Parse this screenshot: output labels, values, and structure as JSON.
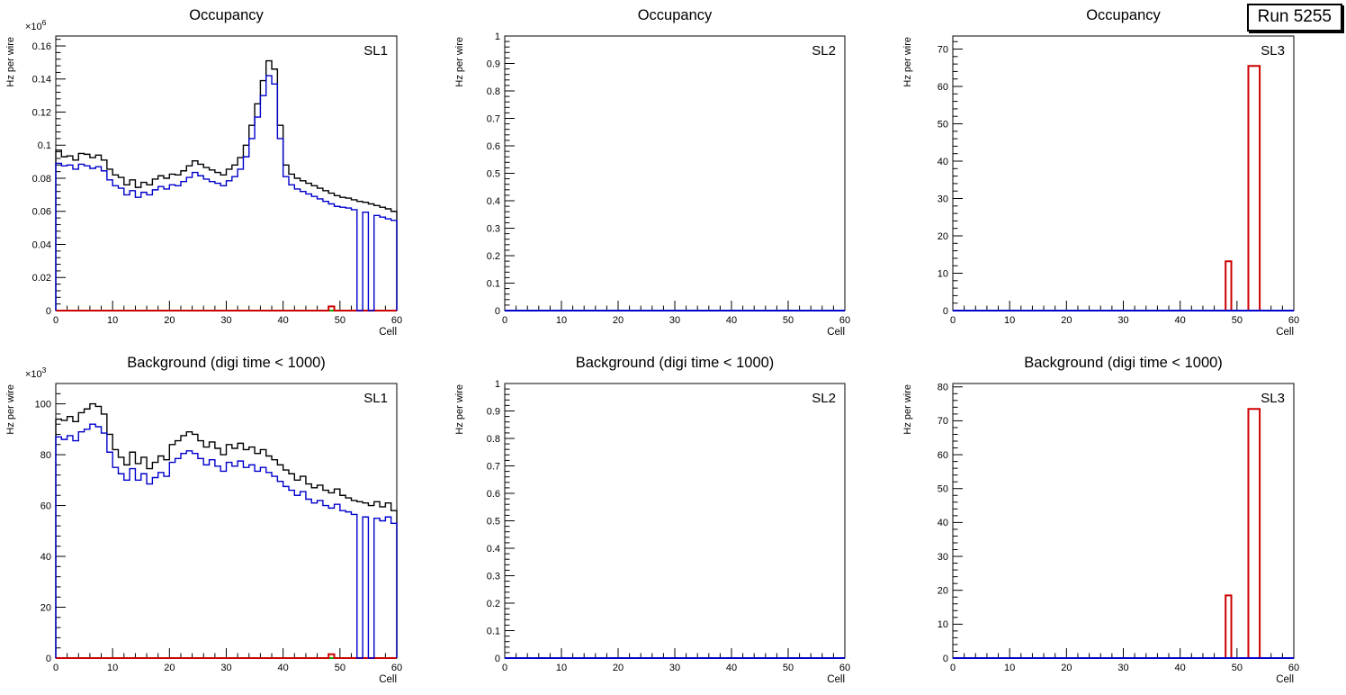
{
  "run_label": "Run 5255",
  "chart_data": [
    {
      "id": "occupancy-sl1",
      "type": "bar",
      "subtype": "step-histogram",
      "title": "Occupancy",
      "pad_label": "SL1",
      "xlabel": "Cell",
      "ylabel": "Hz per wire",
      "y_multiplier": {
        "base": "×10",
        "exp": "6"
      },
      "xlim": [
        0,
        60
      ],
      "ylim": [
        0,
        0.166
      ],
      "xticks": [
        0,
        10,
        20,
        30,
        40,
        50,
        60
      ],
      "x_minor": 2,
      "yticks": [
        0,
        0.02,
        0.04,
        0.06,
        0.08,
        0.1,
        0.12,
        0.14,
        0.16
      ],
      "ytick_labels": [
        "0",
        "0.02",
        "0.04",
        "0.06",
        "0.08",
        "0.1",
        "0.12",
        "0.14",
        "0.16"
      ],
      "y_minor": 0.004,
      "nbins": 60,
      "grid": false,
      "legend": "none",
      "series": [
        {
          "name": "zero-baseline-green",
          "color": "#00b400",
          "lw": 2,
          "default": 0
        },
        {
          "name": "noisy-cells-red",
          "color": "#cc0000",
          "lw": 2,
          "default": 0,
          "spikes": {
            "48": 0.0025
          }
        },
        {
          "name": "total-black",
          "color": "#000000",
          "lw": 1.4,
          "values": [
            0.097,
            0.093,
            0.0935,
            0.091,
            0.095,
            0.0945,
            0.0925,
            0.094,
            0.091,
            0.0855,
            0.082,
            0.0805,
            0.076,
            0.079,
            0.0745,
            0.0775,
            0.076,
            0.0795,
            0.0815,
            0.08,
            0.0825,
            0.082,
            0.0845,
            0.0875,
            0.0905,
            0.0885,
            0.0865,
            0.085,
            0.0835,
            0.082,
            0.0855,
            0.088,
            0.0925,
            0.1,
            0.112,
            0.125,
            0.139,
            0.151,
            0.146,
            0.112,
            0.088,
            0.0825,
            0.08,
            0.0785,
            0.077,
            0.0755,
            0.074,
            0.0725,
            0.071,
            0.0695,
            0.0685,
            0.068,
            0.067,
            0.066,
            0.0655,
            0.0645,
            0.0635,
            0.0625,
            0.0615,
            0.06
          ]
        },
        {
          "name": "selected-blue",
          "color": "#0000cc",
          "lw": 1.4,
          "values": [
            0.089,
            0.0875,
            0.088,
            0.0855,
            0.0885,
            0.0875,
            0.086,
            0.087,
            0.0845,
            0.079,
            0.0755,
            0.074,
            0.07,
            0.0725,
            0.0685,
            0.0715,
            0.07,
            0.073,
            0.075,
            0.0735,
            0.076,
            0.0755,
            0.078,
            0.0805,
            0.0835,
            0.0815,
            0.0795,
            0.078,
            0.077,
            0.0755,
            0.0785,
            0.081,
            0.0855,
            0.093,
            0.104,
            0.117,
            0.13,
            0.142,
            0.137,
            0.104,
            0.081,
            0.076,
            0.0735,
            0.072,
            0.0705,
            0.069,
            0.0675,
            0.066,
            0.0645,
            0.063,
            0.0625,
            0.062,
            0.061,
            0,
            0.0595,
            0,
            0.0575,
            0.0565,
            0.0555,
            0.0545
          ]
        }
      ]
    },
    {
      "id": "occupancy-sl2",
      "type": "bar",
      "subtype": "step-histogram",
      "title": "Occupancy",
      "pad_label": "SL2",
      "xlabel": "Cell",
      "ylabel": "Hz per wire",
      "y_multiplier": null,
      "xlim": [
        0,
        60
      ],
      "ylim": [
        0,
        1
      ],
      "xticks": [
        0,
        10,
        20,
        30,
        40,
        50,
        60
      ],
      "x_minor": 2,
      "yticks": [
        0,
        0.1,
        0.2,
        0.3,
        0.4,
        0.5,
        0.6,
        0.7,
        0.8,
        0.9,
        1
      ],
      "ytick_labels": [
        "0",
        "0.1",
        "0.2",
        "0.3",
        "0.4",
        "0.5",
        "0.6",
        "0.7",
        "0.8",
        "0.9",
        "1"
      ],
      "y_minor": 0.02,
      "nbins": 60,
      "grid": false,
      "legend": "none",
      "series": [
        {
          "name": "empty-baseline-blue",
          "color": "#0000cc",
          "lw": 2,
          "default": 0
        }
      ]
    },
    {
      "id": "occupancy-sl3",
      "type": "bar",
      "subtype": "step-histogram",
      "title": "Occupancy",
      "pad_label": "SL3",
      "xlabel": "Cell",
      "ylabel": "Hz per wire",
      "y_multiplier": null,
      "xlim": [
        0,
        60
      ],
      "ylim": [
        0,
        73.5
      ],
      "xticks": [
        0,
        10,
        20,
        30,
        40,
        50,
        60
      ],
      "x_minor": 2,
      "yticks": [
        0,
        10,
        20,
        30,
        40,
        50,
        60,
        70
      ],
      "ytick_labels": [
        "0",
        "10",
        "20",
        "30",
        "40",
        "50",
        "60",
        "70"
      ],
      "y_minor": 2,
      "nbins": 60,
      "grid": false,
      "legend": "none",
      "series": [
        {
          "name": "noisy-cells-red",
          "color": "#cc0000",
          "lw": 2,
          "default": 0,
          "spikes": {
            "48": 13.2,
            "52": 65.5,
            "53": 65.5
          }
        },
        {
          "name": "empty-baseline-blue",
          "color": "#0000cc",
          "lw": 2,
          "default": 0
        }
      ]
    },
    {
      "id": "background-sl1",
      "type": "bar",
      "subtype": "step-histogram",
      "title": "Background (digi time < 1000)",
      "pad_label": "SL1",
      "xlabel": "Cell",
      "ylabel": "Hz per wire",
      "y_multiplier": {
        "base": "×10",
        "exp": "3"
      },
      "xlim": [
        0,
        60
      ],
      "ylim": [
        0,
        108
      ],
      "xticks": [
        0,
        10,
        20,
        30,
        40,
        50,
        60
      ],
      "x_minor": 2,
      "yticks": [
        0,
        20,
        40,
        60,
        80,
        100
      ],
      "ytick_labels": [
        "0",
        "20",
        "40",
        "60",
        "80",
        "100"
      ],
      "y_minor": 4,
      "nbins": 60,
      "grid": false,
      "legend": "none",
      "series": [
        {
          "name": "zero-baseline-green",
          "color": "#00b400",
          "lw": 2,
          "default": 0
        },
        {
          "name": "noisy-cells-red",
          "color": "#cc0000",
          "lw": 2,
          "default": 0,
          "spikes": {
            "48": 1.5
          }
        },
        {
          "name": "total-black",
          "color": "#000000",
          "lw": 1.4,
          "values": [
            94,
            93.5,
            95,
            93,
            96.5,
            98,
            100,
            99,
            96,
            88,
            82,
            79,
            76,
            81,
            76.5,
            79,
            74.5,
            77,
            79.5,
            78,
            84,
            85.5,
            87.5,
            89,
            88,
            85.5,
            83,
            85,
            82.5,
            80,
            84,
            82.5,
            84.5,
            82,
            83,
            80.5,
            82,
            79.5,
            78,
            76,
            74,
            72.5,
            70,
            71.5,
            68.5,
            67,
            68,
            66,
            65,
            66.5,
            64,
            63,
            62,
            61.5,
            61,
            60,
            61.5,
            59.5,
            61,
            58
          ]
        },
        {
          "name": "selected-blue",
          "color": "#0000cc",
          "lw": 1.4,
          "values": [
            87,
            86,
            87.5,
            85.5,
            89,
            90,
            92,
            91,
            88.5,
            81,
            75,
            72.5,
            70,
            74.5,
            70,
            72.5,
            68.5,
            71,
            73,
            71.5,
            77,
            78.5,
            80.5,
            81.5,
            80.5,
            78.5,
            76,
            78,
            75.5,
            73.5,
            77,
            75.5,
            77.5,
            75,
            76,
            73.5,
            75,
            73,
            71.5,
            69.5,
            67.5,
            66,
            64,
            65.5,
            62.5,
            61,
            62,
            60,
            59,
            60.5,
            58,
            57.5,
            56.5,
            0,
            55.5,
            0,
            55,
            54,
            55.5,
            53
          ]
        }
      ]
    },
    {
      "id": "background-sl2",
      "type": "bar",
      "subtype": "step-histogram",
      "title": "Background (digi time < 1000)",
      "pad_label": "SL2",
      "xlabel": "Cell",
      "ylabel": "Hz per wire",
      "y_multiplier": null,
      "xlim": [
        0,
        60
      ],
      "ylim": [
        0,
        1
      ],
      "xticks": [
        0,
        10,
        20,
        30,
        40,
        50,
        60
      ],
      "x_minor": 2,
      "yticks": [
        0,
        0.1,
        0.2,
        0.3,
        0.4,
        0.5,
        0.6,
        0.7,
        0.8,
        0.9,
        1
      ],
      "ytick_labels": [
        "0",
        "0.1",
        "0.2",
        "0.3",
        "0.4",
        "0.5",
        "0.6",
        "0.7",
        "0.8",
        "0.9",
        "1"
      ],
      "y_minor": 0.02,
      "nbins": 60,
      "grid": false,
      "legend": "none",
      "series": [
        {
          "name": "empty-baseline-blue",
          "color": "#0000cc",
          "lw": 2,
          "default": 0
        }
      ]
    },
    {
      "id": "background-sl3",
      "type": "bar",
      "subtype": "step-histogram",
      "title": "Background (digi time < 1000)",
      "pad_label": "SL3",
      "xlabel": "Cell",
      "ylabel": "Hz per wire",
      "y_multiplier": null,
      "xlim": [
        0,
        60
      ],
      "ylim": [
        0,
        81
      ],
      "xticks": [
        0,
        10,
        20,
        30,
        40,
        50,
        60
      ],
      "x_minor": 2,
      "yticks": [
        0,
        10,
        20,
        30,
        40,
        50,
        60,
        70,
        80
      ],
      "ytick_labels": [
        "0",
        "10",
        "20",
        "30",
        "40",
        "50",
        "60",
        "70",
        "80"
      ],
      "y_minor": 2,
      "nbins": 60,
      "grid": false,
      "legend": "none",
      "series": [
        {
          "name": "noisy-cells-red",
          "color": "#cc0000",
          "lw": 2,
          "default": 0,
          "spikes": {
            "48": 18.5,
            "52": 73.5,
            "53": 73.5
          }
        },
        {
          "name": "empty-baseline-blue",
          "color": "#0000cc",
          "lw": 2,
          "default": 0
        }
      ]
    }
  ]
}
